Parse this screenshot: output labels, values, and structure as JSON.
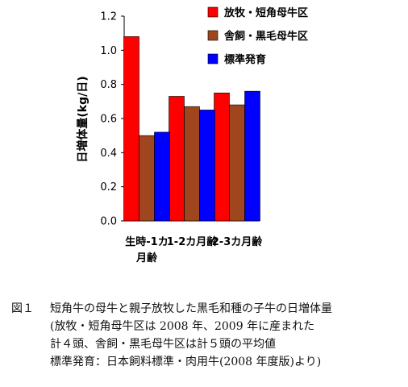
{
  "chart_data": {
    "type": "bar",
    "ylabel": "日増体量(kg/日)",
    "ylim": [
      0,
      1.2
    ],
    "yticks": [
      "0.0",
      "0.2",
      "0.4",
      "0.6",
      "0.8",
      "1.0",
      "1.2"
    ],
    "categories": [
      [
        "生時-1カ",
        "月齢"
      ],
      [
        "1-2カ月齢"
      ],
      [
        "2-3カ月齢"
      ]
    ],
    "series": [
      {
        "name": "放牧・短角母牛区",
        "color": "#ff0000",
        "values": [
          1.08,
          0.73,
          0.75
        ]
      },
      {
        "name": "舎飼・黒毛母牛区",
        "color": "#a0461e",
        "values": [
          0.5,
          0.67,
          0.68
        ]
      },
      {
        "name": "標準発育",
        "color": "#0000ff",
        "values": [
          0.52,
          0.65,
          0.76
        ]
      }
    ],
    "legend_position": "top-right",
    "grid": false
  },
  "caption": {
    "number": "図１",
    "lines": [
      "短角牛の母牛と親子放牧した黒毛和種の子牛の日増体量",
      "(放牧・短角母牛区は 2008 年、2009 年に産まれた",
      "計４頭、舎飼・黒毛母牛区は計５頭の平均値",
      "標準発育：日本飼料標準・肉用牛(2008 年度版)より)"
    ]
  }
}
